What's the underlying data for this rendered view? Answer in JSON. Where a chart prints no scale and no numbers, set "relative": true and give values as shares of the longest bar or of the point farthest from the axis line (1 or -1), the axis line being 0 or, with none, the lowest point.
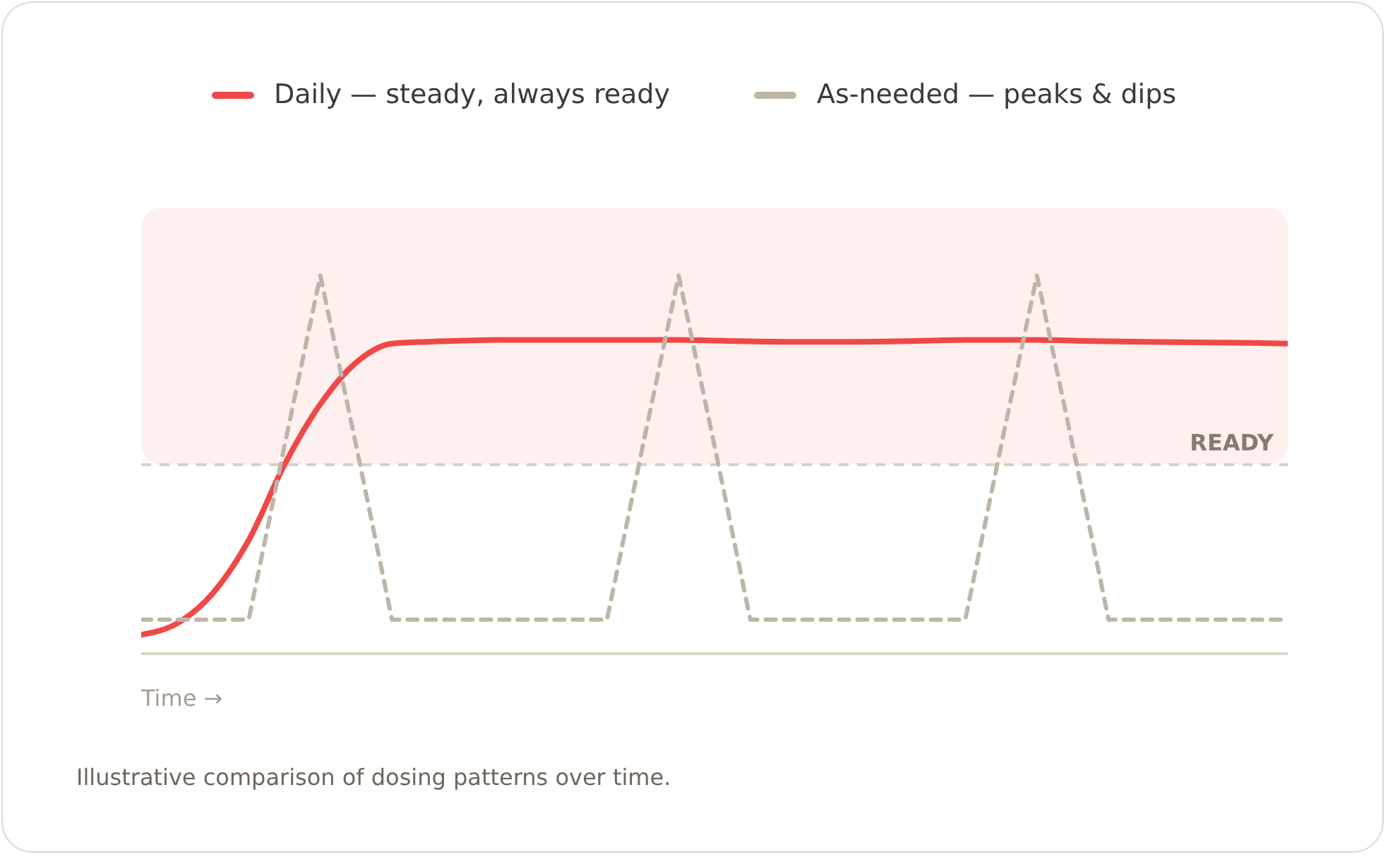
{
  "chart_data": {
    "type": "line",
    "relative": true,
    "xlabel": "Time →",
    "legend": "top",
    "marker": "none",
    "categories": [
      null,
      null,
      null,
      null,
      null,
      null,
      null,
      null,
      null,
      null,
      null,
      null,
      null,
      null,
      null,
      null,
      null,
      null,
      null,
      null,
      null,
      null,
      null,
      null,
      null,
      null,
      null,
      null,
      null,
      null,
      null,
      null,
      null
    ],
    "series": [
      {
        "name": "Daily — steady, always ready",
        "color": "#f04848",
        "line_style": "solid",
        "values": [
          0.05,
          0.08,
          0.16,
          0.3,
          0.5,
          0.66,
          0.77,
          0.82,
          0.825,
          0.828,
          0.83,
          0.83,
          0.83,
          0.83,
          0.83,
          0.83,
          0.828,
          0.826,
          0.825,
          0.825,
          0.825,
          0.826,
          0.828,
          0.83,
          0.83,
          0.83,
          0.828,
          0.826,
          0.825,
          0.824,
          0.823,
          0.822,
          0.82
        ]
      },
      {
        "name": "As-needed — peaks & dips",
        "color": "#bdb5a8",
        "line_style": "dashed",
        "values": [
          0.09,
          0.09,
          0.09,
          0.09,
          0.55,
          1.0,
          0.55,
          0.09,
          0.09,
          0.09,
          0.09,
          0.09,
          0.09,
          0.09,
          0.55,
          1.0,
          0.55,
          0.09,
          0.09,
          0.09,
          0.09,
          0.09,
          0.09,
          0.09,
          0.55,
          1.0,
          0.55,
          0.09,
          0.09,
          0.09,
          0.09,
          0.09,
          0.09
        ]
      }
    ],
    "bands": [
      {
        "axis": "y",
        "from": 0.5,
        "to": 1.18,
        "color": "#fdf0ee"
      }
    ],
    "ref_lines": [
      {
        "axis": "y",
        "value": 0.5,
        "label": "READY",
        "color": "#d6cec4",
        "line_style": "dashed"
      }
    ],
    "annotations": [
      "Illustrative comparison of dosing patterns over time."
    ]
  }
}
